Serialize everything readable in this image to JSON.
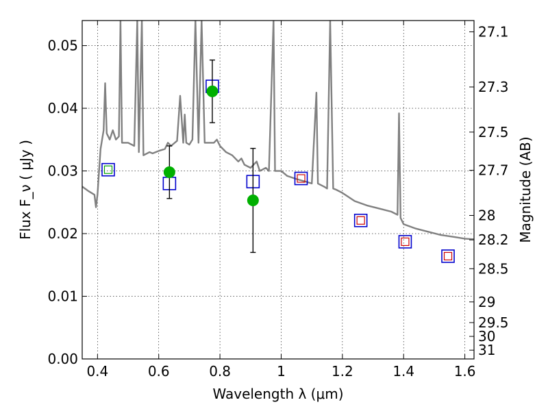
{
  "chart_data": {
    "type": "scatter",
    "title": "",
    "xlabel": "Wavelength  λ (μm)",
    "ylabel": "Flux  F_ν  ( μJy )",
    "ylabel_right": "Magnitude (AB)",
    "xlim": [
      0.35,
      1.63
    ],
    "ylim": [
      0.0,
      0.054
    ],
    "grid": true,
    "x_ticks": [
      0.4,
      0.6,
      0.8,
      1.0,
      1.2,
      1.4,
      1.6
    ],
    "x_tick_labels": [
      "0.4",
      "0.6",
      "0.8",
      "1",
      "1.2",
      "1.4",
      "1.6"
    ],
    "y_ticks": [
      0.0,
      0.01,
      0.02,
      0.03,
      0.04,
      0.05
    ],
    "y_tick_labels": [
      "0.00",
      "0.01",
      "0.02",
      "0.03",
      "0.04",
      "0.05"
    ],
    "right_ticks": [
      {
        "label": "27.1",
        "flux": 0.0522
      },
      {
        "label": "27.3",
        "flux": 0.0434
      },
      {
        "label": "27.5",
        "flux": 0.0362
      },
      {
        "label": "27.7",
        "flux": 0.0301
      },
      {
        "label": "28",
        "flux": 0.0229
      },
      {
        "label": "28.2",
        "flux": 0.019
      },
      {
        "label": "28.5",
        "flux": 0.0144
      },
      {
        "label": "29",
        "flux": 0.0091
      },
      {
        "label": "29.5",
        "flux": 0.0058
      },
      {
        "label": "30",
        "flux": 0.0036
      },
      {
        "label": "31",
        "flux": 0.0014
      }
    ],
    "colors": {
      "model": "#808080",
      "observed": "#00b000",
      "errorbar": "#000000",
      "blue_box": "#0000cc",
      "red_box": "#cc0000",
      "green_box": "#00a000"
    },
    "series": [
      {
        "kind": "line",
        "points": [
          [
            0.35,
            0.0275
          ],
          [
            0.37,
            0.0268
          ],
          [
            0.39,
            0.0262
          ],
          [
            0.395,
            0.0242
          ],
          [
            0.4,
            0.0262
          ],
          [
            0.41,
            0.0335
          ],
          [
            0.42,
            0.0365
          ],
          [
            0.425,
            0.044
          ],
          [
            0.43,
            0.036
          ],
          [
            0.44,
            0.035
          ],
          [
            0.45,
            0.0365
          ],
          [
            0.46,
            0.035
          ],
          [
            0.47,
            0.0355
          ],
          [
            0.475,
            0.054
          ],
          [
            0.48,
            0.0345
          ],
          [
            0.5,
            0.0345
          ],
          [
            0.52,
            0.034
          ],
          [
            0.53,
            0.054
          ],
          [
            0.535,
            0.033
          ],
          [
            0.545,
            0.054
          ],
          [
            0.55,
            0.0325
          ],
          [
            0.57,
            0.033
          ],
          [
            0.58,
            0.0328
          ],
          [
            0.59,
            0.033
          ],
          [
            0.6,
            0.0332
          ],
          [
            0.62,
            0.0335
          ],
          [
            0.63,
            0.0345
          ],
          [
            0.64,
            0.034
          ],
          [
            0.66,
            0.0348
          ],
          [
            0.67,
            0.042
          ],
          [
            0.68,
            0.0345
          ],
          [
            0.685,
            0.039
          ],
          [
            0.69,
            0.0345
          ],
          [
            0.7,
            0.0342
          ],
          [
            0.71,
            0.035
          ],
          [
            0.72,
            0.054
          ],
          [
            0.73,
            0.0345
          ],
          [
            0.74,
            0.054
          ],
          [
            0.75,
            0.0345
          ],
          [
            0.76,
            0.0345
          ],
          [
            0.78,
            0.0345
          ],
          [
            0.79,
            0.035
          ],
          [
            0.8,
            0.034
          ],
          [
            0.82,
            0.033
          ],
          [
            0.84,
            0.0325
          ],
          [
            0.86,
            0.0315
          ],
          [
            0.87,
            0.032
          ],
          [
            0.88,
            0.031
          ],
          [
            0.9,
            0.0305
          ],
          [
            0.92,
            0.0315
          ],
          [
            0.93,
            0.03
          ],
          [
            0.95,
            0.0305
          ],
          [
            0.96,
            0.03
          ],
          [
            0.975,
            0.054
          ],
          [
            0.98,
            0.03
          ],
          [
            1.0,
            0.03
          ],
          [
            1.02,
            0.0292
          ],
          [
            1.05,
            0.0287
          ],
          [
            1.08,
            0.0283
          ],
          [
            1.1,
            0.028
          ],
          [
            1.115,
            0.0425
          ],
          [
            1.12,
            0.028
          ],
          [
            1.14,
            0.0275
          ],
          [
            1.15,
            0.0272
          ],
          [
            1.16,
            0.054
          ],
          [
            1.17,
            0.0272
          ],
          [
            1.18,
            0.027
          ],
          [
            1.2,
            0.0265
          ],
          [
            1.24,
            0.0252
          ],
          [
            1.28,
            0.0245
          ],
          [
            1.32,
            0.024
          ],
          [
            1.36,
            0.0235
          ],
          [
            1.38,
            0.023
          ],
          [
            1.385,
            0.0392
          ],
          [
            1.39,
            0.0225
          ],
          [
            1.4,
            0.0215
          ],
          [
            1.44,
            0.0208
          ],
          [
            1.48,
            0.0203
          ],
          [
            1.52,
            0.0198
          ],
          [
            1.56,
            0.0195
          ],
          [
            1.6,
            0.0192
          ],
          [
            1.63,
            0.0191
          ]
        ]
      },
      {
        "kind": "points",
        "x": [
          0.635,
          0.775,
          0.908
        ],
        "y": [
          0.0298,
          0.0427,
          0.0253
        ],
        "yerr": [
          0.0042,
          0.005,
          0.0083
        ]
      },
      {
        "kind": "boxes",
        "points": [
          {
            "x": 0.435,
            "y": 0.0302,
            "inner": "green"
          },
          {
            "x": 0.635,
            "y": 0.028,
            "inner": "none"
          },
          {
            "x": 0.775,
            "y": 0.0435,
            "inner": "none"
          },
          {
            "x": 0.908,
            "y": 0.0283,
            "inner": "none"
          },
          {
            "x": 1.065,
            "y": 0.0288,
            "inner": "red"
          },
          {
            "x": 1.26,
            "y": 0.0221,
            "inner": "red"
          },
          {
            "x": 1.405,
            "y": 0.0187,
            "inner": "red"
          },
          {
            "x": 1.545,
            "y": 0.0164,
            "inner": "red"
          }
        ]
      }
    ]
  }
}
